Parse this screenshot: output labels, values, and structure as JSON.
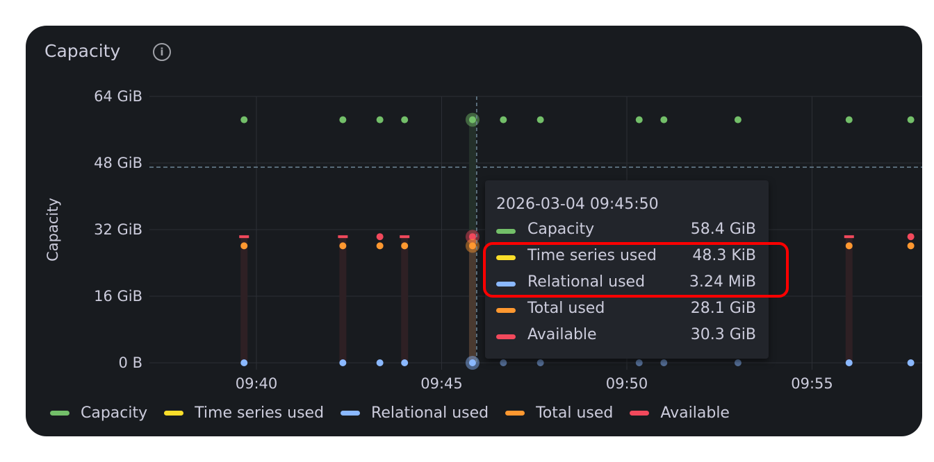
{
  "panel": {
    "title": "Capacity",
    "info_icon": "info-circle-icon"
  },
  "colors": {
    "capacity": "#73bf69",
    "time_series_used": "#fade2a",
    "relational_used": "#8ab8ff",
    "total_used": "#ff9830",
    "available": "#f2495c",
    "panel_bg": "#181b1f",
    "highlight": "#ff0000"
  },
  "chart_data": {
    "type": "scatter",
    "title": "Capacity",
    "ylabel": "Capacity",
    "xlabel": "",
    "y_unit": "GiB",
    "ylim": [
      0,
      64
    ],
    "y_ticks": [
      {
        "v": 0,
        "label": "0 B"
      },
      {
        "v": 16,
        "label": "16 GiB"
      },
      {
        "v": 32,
        "label": "32 GiB"
      },
      {
        "v": 48,
        "label": "48 GiB"
      },
      {
        "v": 64,
        "label": "64 GiB"
      }
    ],
    "x_ticks": [
      "09:40",
      "09:45",
      "09:50",
      "09:55"
    ],
    "xlim": [
      "09:37:10",
      "09:57:40"
    ],
    "threshold": 47,
    "grid": true,
    "legend_placement": "bottom-left",
    "x": [
      "09:39:40",
      "09:42:20",
      "09:43:20",
      "09:44:00",
      "09:45:50",
      "09:46:40",
      "09:47:40",
      "09:50:20",
      "09:51:00",
      "09:53:00",
      "09:56:00",
      "09:57:40"
    ],
    "series": [
      {
        "name": "Capacity",
        "key": "capacity",
        "values": [
          58.4,
          58.4,
          58.4,
          58.4,
          58.4,
          58.4,
          58.4,
          58.4,
          58.4,
          58.4,
          58.4,
          58.4
        ]
      },
      {
        "name": "Time series used",
        "key": "time_series_used",
        "values": [
          0,
          0,
          0,
          0,
          0,
          0,
          0,
          0,
          0,
          0,
          0,
          0
        ]
      },
      {
        "name": "Relational used",
        "key": "relational_used",
        "values": [
          0,
          0,
          0,
          0,
          0,
          0,
          0,
          0,
          0,
          0,
          0,
          0
        ]
      },
      {
        "name": "Total used",
        "key": "total_used",
        "values": [
          28.1,
          28.1,
          28.1,
          28.1,
          28.1,
          null,
          null,
          null,
          null,
          null,
          28.1,
          28.1
        ]
      },
      {
        "name": "Available",
        "key": "available",
        "values": [
          30.3,
          30.3,
          30.3,
          30.3,
          30.3,
          null,
          null,
          null,
          null,
          null,
          30.3,
          30.3
        ]
      }
    ],
    "hover": {
      "x": "09:45:50"
    }
  },
  "tooltip": {
    "time": "2026-03-04 09:45:50",
    "rows": [
      {
        "label": "Capacity",
        "value": "58.4 GiB",
        "color": "#73bf69"
      },
      {
        "label": "Time series used",
        "value": "48.3 KiB",
        "color": "#fade2a"
      },
      {
        "label": "Relational used",
        "value": "3.24 MiB",
        "color": "#8ab8ff"
      },
      {
        "label": "Total used",
        "value": "28.1 GiB",
        "color": "#ff9830"
      },
      {
        "label": "Available",
        "value": "30.3 GiB",
        "color": "#f2495c"
      }
    ]
  },
  "legend": [
    {
      "label": "Capacity",
      "color": "#73bf69"
    },
    {
      "label": "Time series used",
      "color": "#fade2a"
    },
    {
      "label": "Relational used",
      "color": "#8ab8ff"
    },
    {
      "label": "Total used",
      "color": "#ff9830"
    },
    {
      "label": "Available",
      "color": "#f2495c"
    }
  ]
}
